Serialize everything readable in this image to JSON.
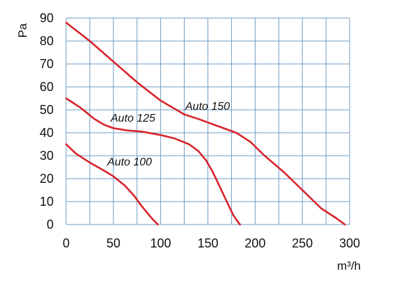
{
  "chart_data": {
    "type": "line",
    "title": "",
    "xlabel": "m³/h",
    "ylabel": "Pa",
    "xlim": [
      0,
      300
    ],
    "ylim": [
      0,
      90
    ],
    "xticks": [
      0,
      50,
      100,
      150,
      200,
      250,
      300
    ],
    "yticks": [
      0,
      10,
      20,
      30,
      40,
      50,
      60,
      70,
      80,
      90
    ],
    "grid": true,
    "legend": "none",
    "colors": {
      "line": "#d8232a",
      "grid": "#6f9bc4",
      "text": "#111111"
    },
    "series": [
      {
        "name": "Auto 100",
        "x": [
          0,
          10,
          25,
          40,
          50,
          62,
          72,
          80,
          90,
          97
        ],
        "y": [
          35,
          31,
          27,
          23.5,
          21,
          17,
          12.5,
          8,
          3,
          0
        ]
      },
      {
        "name": "Auto 125",
        "x": [
          0,
          15,
          30,
          40,
          50,
          65,
          80,
          100,
          115,
          130,
          140,
          148,
          155,
          162,
          170,
          177,
          182,
          184
        ],
        "y": [
          55,
          51,
          46,
          43.5,
          42,
          41,
          40.5,
          39,
          37.5,
          35,
          32,
          28,
          23,
          17,
          10,
          4,
          1,
          0
        ]
      },
      {
        "name": "Auto 150",
        "x": [
          0,
          25,
          50,
          75,
          100,
          125,
          140,
          160,
          180,
          195,
          210,
          230,
          250,
          270,
          285,
          295
        ],
        "y": [
          88,
          80,
          71,
          62,
          54,
          48,
          46,
          43,
          40,
          36,
          30,
          23,
          15,
          7,
          3,
          0
        ]
      }
    ]
  }
}
